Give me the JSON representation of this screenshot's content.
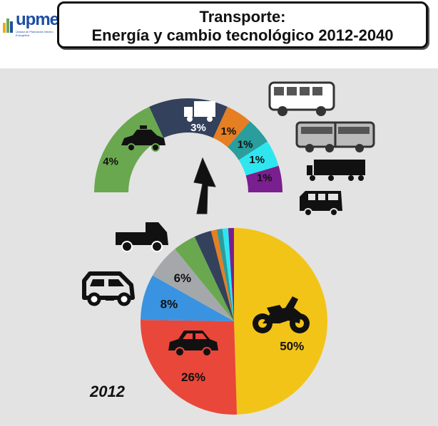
{
  "header": {
    "logo_text": "upme",
    "logo_subtext": "Unidad de Planeación Minero Energética",
    "title_line1": "Transporte:",
    "title_line2": "Energía y cambio tecnológico 2012-2040"
  },
  "chart_data": [
    {
      "type": "pie",
      "year_label": "2012",
      "slices": [
        {
          "name": "moto",
          "value": 50,
          "label": "50%",
          "color": "#f2c418"
        },
        {
          "name": "automóvil",
          "value": 26,
          "label": "26%",
          "color": "#e8473a"
        },
        {
          "name": "campero",
          "value": 8,
          "label": "8%",
          "color": "#3a93e0"
        },
        {
          "name": "camioneta",
          "value": 6,
          "label": "6%",
          "color": "#a4a8ab"
        },
        {
          "name": "taxi",
          "value": 4,
          "label": "",
          "color": "#6aa84f"
        },
        {
          "name": "camión",
          "value": 3,
          "label": "",
          "color": "#33415c"
        },
        {
          "name": "bus",
          "value": 1,
          "label": "",
          "color": "#e67e22"
        },
        {
          "name": "articulado",
          "value": 1,
          "label": "",
          "color": "#2a9d9d"
        },
        {
          "name": "tractocamión",
          "value": 1,
          "label": "",
          "color": "#2ee6f0"
        },
        {
          "name": "microbús",
          "value": 1,
          "label": "",
          "color": "#7a1f8f"
        }
      ]
    },
    {
      "type": "pie",
      "segments": [
        {
          "name": "taxi",
          "value": 4,
          "label": "4%",
          "color": "#6aa84f"
        },
        {
          "name": "camión",
          "value": 3,
          "label": "3%",
          "color": "#33415c"
        },
        {
          "name": "bus",
          "value": 1,
          "label": "1%",
          "color": "#e67e22"
        },
        {
          "name": "articulado",
          "value": 1,
          "label": "1%",
          "color": "#2a9d9d"
        },
        {
          "name": "tractocamión",
          "value": 1,
          "label": "1%",
          "color": "#2ee6f0"
        },
        {
          "name": "microbús",
          "value": 1,
          "label": "1%",
          "color": "#7a1f8f"
        }
      ]
    }
  ]
}
